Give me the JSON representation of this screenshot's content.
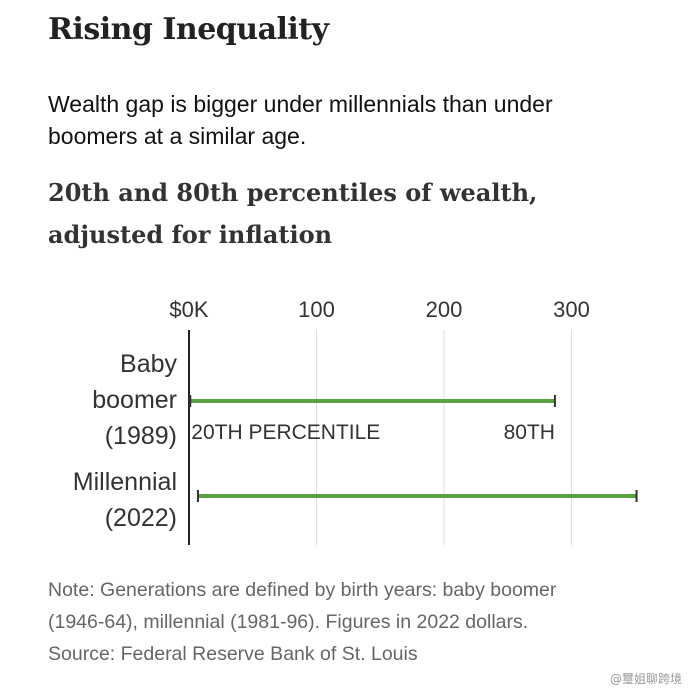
{
  "header": {
    "title": "Rising Inequality",
    "subtitle": "Wealth gap is bigger under millennials than under boomers at a similar age."
  },
  "chart_data": {
    "type": "range-bar",
    "title": "20th and 80th percentiles of wealth, adjusted for inflation",
    "x_ticks": [
      "$0K",
      "100",
      "200",
      "300"
    ],
    "x_tick_values": [
      0,
      100,
      200,
      300
    ],
    "xlim": [
      0,
      300
    ],
    "grid": true,
    "series": [
      {
        "name": "Baby boomer (1989)",
        "label_lines": [
          "Baby",
          "boomer",
          "(1989)"
        ],
        "p20": 1,
        "p80": 287,
        "start_label": "20TH PERCENTILE",
        "end_label": "80TH"
      },
      {
        "name": "Millennial (2022)",
        "label_lines": [
          "Millennial",
          "(2022)"
        ],
        "p20": 7,
        "p80": 351,
        "start_label": "",
        "end_label": ""
      }
    ],
    "bar_color": "#5aa342"
  },
  "notes": [
    "Note: Generations are defined by birth years: baby boomer",
    "(1946-64), millennial (1981-96). Figures in 2022 dollars.",
    "Source: Federal Reserve Bank of St. Louis"
  ],
  "watermark": "@璽姐聊跨境"
}
